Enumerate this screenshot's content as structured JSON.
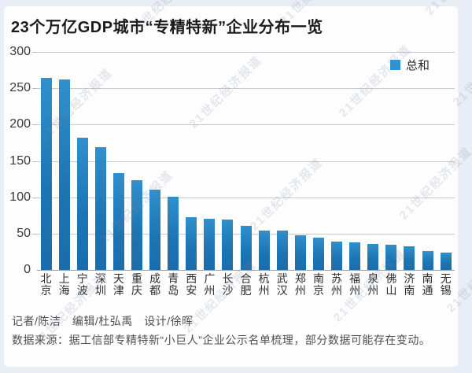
{
  "title": "23个万亿GDP城市“专精特新”企业分布一览",
  "legend": {
    "label": "总和",
    "color": "#2b93d3"
  },
  "watermark": {
    "text": "21世纪经济报道"
  },
  "chart_data": {
    "type": "bar",
    "title": "23个万亿GDP城市“专精特新”企业分布一览",
    "categories": [
      "北京",
      "上海",
      "宁波",
      "深圳",
      "天津",
      "重庆",
      "成都",
      "青岛",
      "西安",
      "广州",
      "长沙",
      "合肥",
      "杭州",
      "武汉",
      "郑州",
      "南京",
      "苏州",
      "福州",
      "泉州",
      "佛山",
      "济南",
      "南通",
      "无锡"
    ],
    "values": [
      264,
      262,
      182,
      169,
      133,
      123,
      110,
      101,
      73,
      70,
      69,
      61,
      54,
      54,
      48,
      45,
      39,
      38,
      36,
      35,
      33,
      26,
      24
    ],
    "series_name": "总和",
    "xlabel": "",
    "ylabel": "",
    "ylim": [
      0,
      300
    ],
    "yticks": [
      0,
      50,
      100,
      150,
      200,
      250,
      300
    ],
    "grid": true,
    "legend_position": "top-right",
    "bar_color": "#1d74b2"
  },
  "footer": {
    "credits": "记者/陈洁　编辑/杜弘禹　设计/徐晖",
    "source": "数据来源：据工信部专精特新“小巨人”企业公示名单梳理，部分数据可能存在变动。"
  }
}
